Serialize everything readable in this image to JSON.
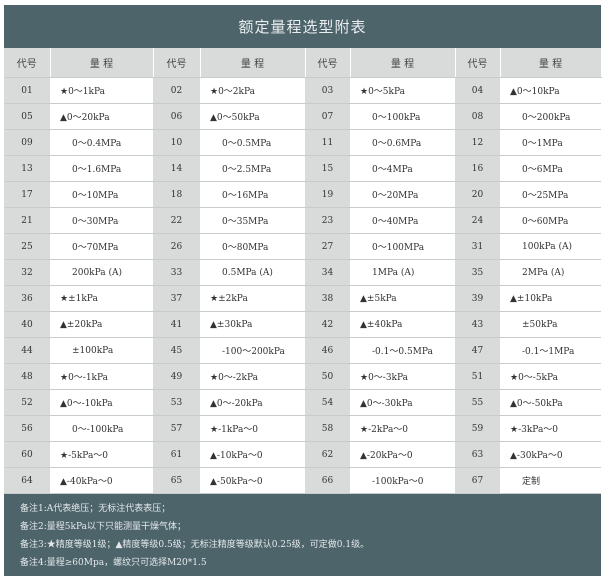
{
  "title": "额定量程选型附表",
  "headers": [
    "代号",
    "量 程",
    "代号",
    "量 程",
    "代号",
    "量 程",
    "代号",
    "量 程"
  ],
  "rows": [
    [
      [
        "01",
        "★0～1kPa"
      ],
      [
        "02",
        "★0～2kPa"
      ],
      [
        "03",
        "★0～5kPa"
      ],
      [
        "04",
        "▲0～10kPa"
      ]
    ],
    [
      [
        "05",
        "▲0～20kPa"
      ],
      [
        "06",
        "▲0～50kPa"
      ],
      [
        "07",
        "0～100kPa"
      ],
      [
        "08",
        "0～200kPa"
      ]
    ],
    [
      [
        "09",
        "0～0.4MPa"
      ],
      [
        "10",
        "0～0.5MPa"
      ],
      [
        "11",
        "0～0.6MPa"
      ],
      [
        "12",
        "0～1MPa"
      ]
    ],
    [
      [
        "13",
        "0～1.6MPa"
      ],
      [
        "14",
        "0～2.5MPa"
      ],
      [
        "15",
        "0～4MPa"
      ],
      [
        "16",
        "0～6MPa"
      ]
    ],
    [
      [
        "17",
        "0～10MPa"
      ],
      [
        "18",
        "0～16MPa"
      ],
      [
        "19",
        "0～20MPa"
      ],
      [
        "20",
        "0～25MPa"
      ]
    ],
    [
      [
        "21",
        "0～30MPa"
      ],
      [
        "22",
        "0～35MPa"
      ],
      [
        "23",
        "0～40MPa"
      ],
      [
        "24",
        "0～60MPa"
      ]
    ],
    [
      [
        "25",
        "0～70MPa"
      ],
      [
        "26",
        "0～80MPa"
      ],
      [
        "27",
        "0～100MPa"
      ],
      [
        "31",
        "100kPa (A)"
      ]
    ],
    [
      [
        "32",
        "200kPa (A)"
      ],
      [
        "33",
        "0.5MPa (A)"
      ],
      [
        "34",
        "1MPa (A)"
      ],
      [
        "35",
        "2MPa (A)"
      ]
    ],
    [
      [
        "36",
        "★±1kPa"
      ],
      [
        "37",
        "★±2kPa"
      ],
      [
        "38",
        "▲±5kPa"
      ],
      [
        "39",
        "▲±10kPa"
      ]
    ],
    [
      [
        "40",
        "▲±20kPa"
      ],
      [
        "41",
        "▲±30kPa"
      ],
      [
        "42",
        "▲±40kPa"
      ],
      [
        "43",
        "±50kPa"
      ]
    ],
    [
      [
        "44",
        "±100kPa"
      ],
      [
        "45",
        "-100～200kPa"
      ],
      [
        "46",
        "-0.1～0.5MPa"
      ],
      [
        "47",
        "-0.1～1MPa"
      ]
    ],
    [
      [
        "48",
        "★0～-1kPa"
      ],
      [
        "49",
        "★0～-2kPa"
      ],
      [
        "50",
        "★0～-3kPa"
      ],
      [
        "51",
        "★0～-5kPa"
      ]
    ],
    [
      [
        "52",
        "▲0～-10kPa"
      ],
      [
        "53",
        "▲0～-20kPa"
      ],
      [
        "54",
        "▲0～-30kPa"
      ],
      [
        "55",
        "▲0～-50kPa"
      ]
    ],
    [
      [
        "56",
        "0～-100kPa"
      ],
      [
        "57",
        "★-1kPa～0"
      ],
      [
        "58",
        "★-2kPa～0"
      ],
      [
        "59",
        "★-3kPa～0"
      ]
    ],
    [
      [
        "60",
        "★-5kPa～0"
      ],
      [
        "61",
        "▲-10kPa～0"
      ],
      [
        "62",
        "▲-20kPa～0"
      ],
      [
        "63",
        "▲-30kPa～0"
      ]
    ],
    [
      [
        "64",
        "▲-40kPa～0"
      ],
      [
        "65",
        "▲-50kPa～0"
      ],
      [
        "66",
        "-100kPa～0"
      ],
      [
        "67",
        "定制"
      ]
    ]
  ],
  "notes": [
    "备注1:A代表绝压；无标注代表表压；",
    "备注2:量程5kPa以下只能测量干燥气体；",
    "备注3:★精度等级1级；▲精度等级0.5级；无标注精度等级默认0.25级，可定做0.1级。",
    "备注4:量程≥60Mpa，螺纹只可选择M20*1.5"
  ],
  "colors": {
    "header_bar": "#4e646b",
    "code_cell": "#d9dbdb"
  }
}
